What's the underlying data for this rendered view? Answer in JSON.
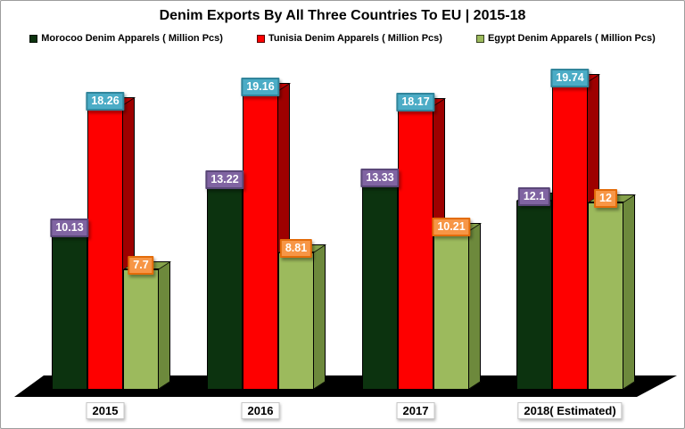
{
  "window": {
    "title": "Denim Exports By All Three Countries To EU | 2015-18"
  },
  "chart_data": {
    "type": "bar",
    "is_3d": true,
    "title": "Denim Exports By All Three Countries To EU | 2015-18",
    "categories": [
      "2015",
      "2016",
      "2017",
      "2018( Estimated)"
    ],
    "series": [
      {
        "name": "Morocoo  Denim Apparels ( Million Pcs)",
        "short_name": "Morocco",
        "values": [
          10.13,
          13.22,
          13.33,
          12.1
        ],
        "value_labels": [
          "10.13",
          "13.22",
          "13.33",
          "12.1"
        ],
        "color_front": "#0c330f",
        "color_side": "#07230a",
        "color_top": "#0f4012",
        "label_bg": "#8064a2",
        "label_border": "#5a4778",
        "label_text_color": "#ffffff"
      },
      {
        "name": "Tunisia  Denim Apparels ( Million Pcs)",
        "short_name": "Tunisia",
        "values": [
          18.26,
          19.16,
          18.17,
          19.74
        ],
        "value_labels": [
          "18.26",
          "19.16",
          "18.17",
          "19.74"
        ],
        "color_front": "#fe0000",
        "color_side": "#9e0000",
        "color_top": "#c00000",
        "label_bg": "#4bacc6",
        "label_border": "#31859b",
        "label_text_color": "#ffffff"
      },
      {
        "name": "Egypt  Denim Apparels ( Million Pcs)",
        "short_name": "Egypt",
        "values": [
          7.7,
          8.81,
          10.21,
          12
        ],
        "value_labels": [
          "7.7",
          "8.81",
          "10.21",
          "12"
        ],
        "color_front": "#9cba5d",
        "color_side": "#6d893c",
        "color_top": "#85a24b",
        "label_bg": "#f79646",
        "label_border": "#e36c0a",
        "label_text_color": "#ffffff"
      }
    ],
    "ylim": [
      0,
      21
    ],
    "grid": false,
    "legend_position": "top",
    "floor_color": "#000000"
  }
}
